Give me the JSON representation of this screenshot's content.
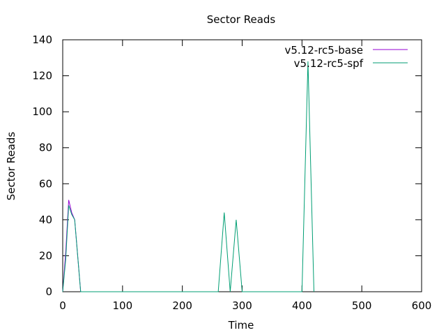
{
  "chart_data": {
    "type": "line",
    "title": "Sector Reads",
    "xlabel": "Time",
    "ylabel": "Sector Reads",
    "xlim": [
      0,
      600
    ],
    "ylim": [
      0,
      140
    ],
    "xticks": [
      0,
      100,
      200,
      300,
      400,
      500,
      600
    ],
    "yticks": [
      0,
      20,
      40,
      60,
      80,
      100,
      120,
      140
    ],
    "grid": false,
    "legend_position": "top-right",
    "series": [
      {
        "name": "v5.12-rc5-base",
        "color": "#9400d3",
        "x": [
          0,
          5,
          10,
          15,
          20,
          25,
          30
        ],
        "y": [
          0,
          22,
          51,
          44,
          40,
          20,
          0
        ]
      },
      {
        "name": "v5.12-rc5-spf",
        "color": "#009e73",
        "x": [
          0,
          5,
          10,
          15,
          20,
          25,
          30,
          260,
          270,
          280,
          290,
          300,
          400,
          410,
          420
        ],
        "y": [
          0,
          18,
          48,
          43,
          40,
          20,
          0,
          0,
          44,
          0,
          40,
          0,
          0,
          128,
          0
        ]
      }
    ]
  }
}
